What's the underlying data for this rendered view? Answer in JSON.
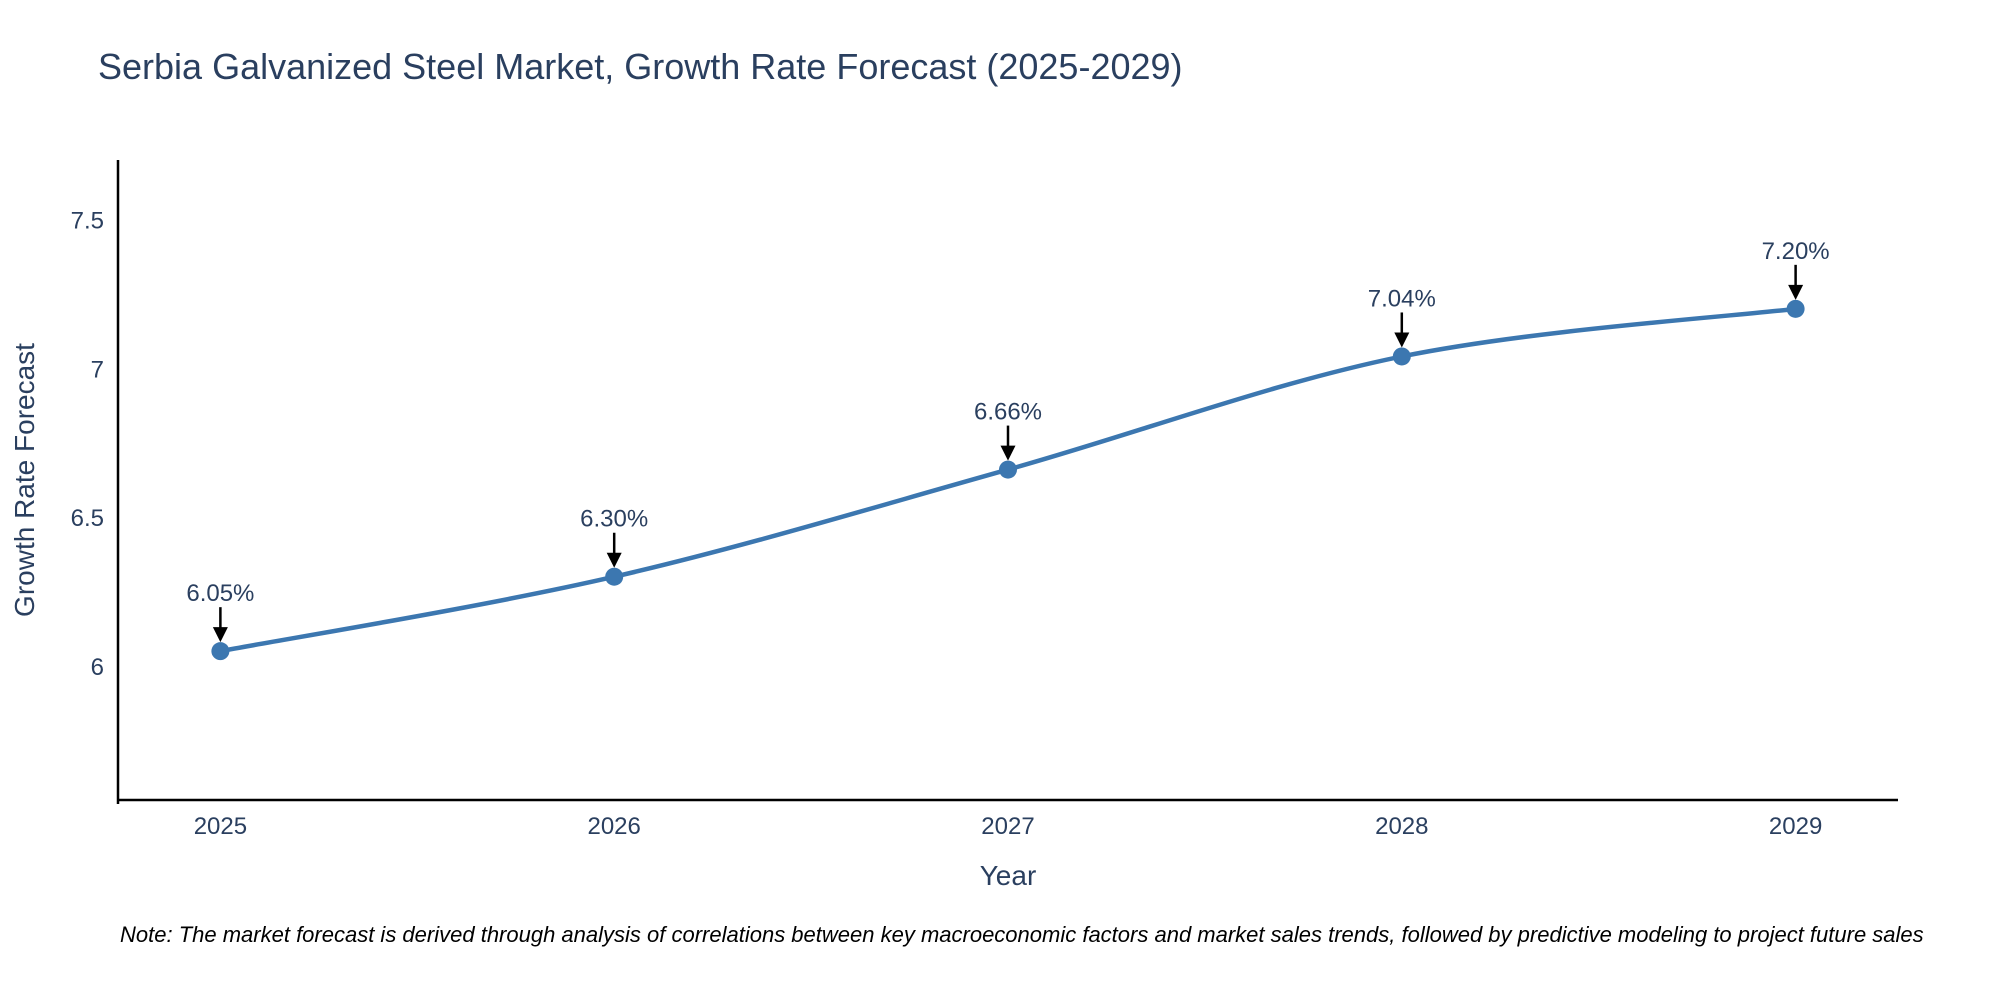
{
  "footnote": {
    "text": "Note: The market forecast is derived through analysis of correlations between key macroeconomic factors and market sales trends, followed by predictive modeling to project future sales"
  },
  "chart_data": {
    "type": "line",
    "title": "Serbia Galvanized Steel Market, Growth Rate Forecast (2025-2029)",
    "xlabel": "Year",
    "ylabel": "Growth Rate Forecast",
    "x": [
      2025,
      2026,
      2027,
      2028,
      2029
    ],
    "x_tick_labels": [
      "2025",
      "2026",
      "2027",
      "2028",
      "2029"
    ],
    "series": [
      {
        "name": "Growth Rate Forecast",
        "values": [
          6.05,
          6.3,
          6.66,
          7.04,
          7.2
        ]
      }
    ],
    "point_labels": [
      "6.05%",
      "6.30%",
      "6.66%",
      "7.04%",
      "7.20%"
    ],
    "y_ticks": [
      6,
      6.5,
      7,
      7.5
    ],
    "y_tick_labels": [
      "6",
      "6.5",
      "7",
      "7.5"
    ],
    "ylim": [
      5.55,
      7.7
    ],
    "xlim": [
      2024.74,
      2029.26
    ],
    "grid": false,
    "legend": "none",
    "line_shape": "spline",
    "annotations": "value labels with black down arrows above each point",
    "colors": {
      "line": "#3c77b0",
      "marker": "#3c77b0",
      "text": "#2a3f5f",
      "axis": "#000000",
      "arrow": "#000000",
      "note": "#000000"
    }
  }
}
